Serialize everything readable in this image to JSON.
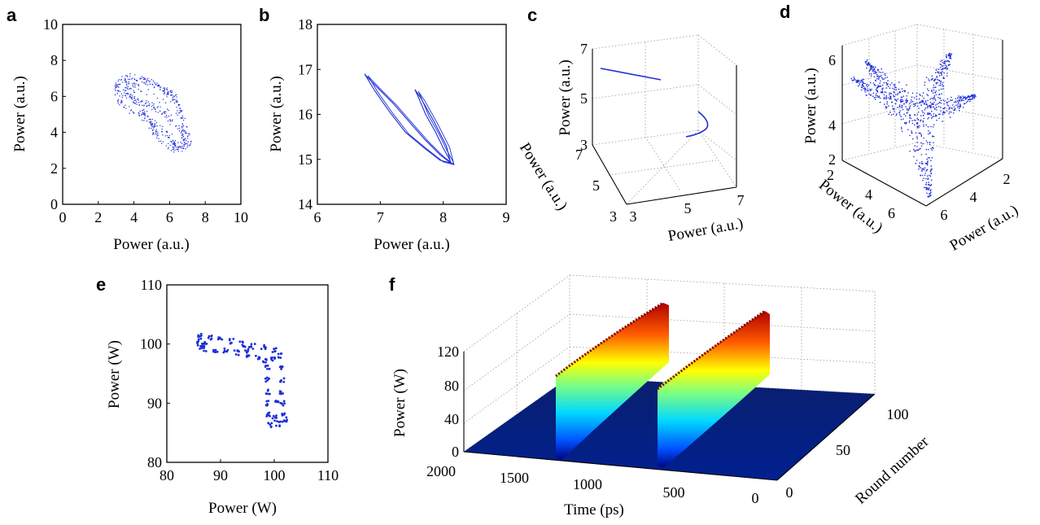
{
  "chart_data": [
    {
      "panel": "a",
      "type": "scatter",
      "xlabel": "Power (a.u.)",
      "ylabel": "Power (a.u.)",
      "xlim": [
        0,
        10
      ],
      "ylim": [
        0,
        10
      ],
      "xticks": [
        "0",
        "2",
        "4",
        "6",
        "8",
        "10"
      ],
      "yticks": [
        "0",
        "2",
        "4",
        "6",
        "8",
        "10"
      ],
      "color": "#1f2fd6",
      "points": [
        [
          3.4,
          7.0
        ],
        [
          3.0,
          6.6
        ],
        [
          3.2,
          5.8
        ],
        [
          4.0,
          5.1
        ],
        [
          5.0,
          4.6
        ],
        [
          5.8,
          4.0
        ],
        [
          6.3,
          3.4
        ],
        [
          6.9,
          3.2
        ],
        [
          6.8,
          3.9
        ],
        [
          6.2,
          4.6
        ],
        [
          5.5,
          5.2
        ],
        [
          4.8,
          5.6
        ],
        [
          4.0,
          5.8
        ],
        [
          3.4,
          6.2
        ],
        [
          3.8,
          7.1
        ],
        [
          4.8,
          6.8
        ],
        [
          5.8,
          6.3
        ],
        [
          6.3,
          5.8
        ],
        [
          6.8,
          4.5
        ],
        [
          7.1,
          3.4
        ],
        [
          6.4,
          3.0
        ],
        [
          5.6,
          3.5
        ],
        [
          5.1,
          4.2
        ],
        [
          4.8,
          4.8
        ],
        [
          4.3,
          5.5
        ],
        [
          3.7,
          6.5
        ],
        [
          4.6,
          6.9
        ],
        [
          5.5,
          6.5
        ],
        [
          6.2,
          6.1
        ],
        [
          6.6,
          5.0
        ]
      ]
    },
    {
      "panel": "b",
      "type": "line",
      "xlabel": "Power (a.u.)",
      "ylabel": "Power (a.u.)",
      "xlim": [
        6,
        9
      ],
      "ylim": [
        14,
        18
      ],
      "xticks": [
        "6",
        "7",
        "8",
        "9"
      ],
      "yticks": [
        "14",
        "15",
        "16",
        "17",
        "18"
      ],
      "color": "#1f2fd6",
      "x": [
        6.75,
        6.9,
        7.15,
        7.4,
        7.7,
        7.95,
        8.12,
        8.05,
        7.85,
        7.65,
        7.55,
        7.6,
        7.72,
        7.88,
        8.0,
        8.1,
        8.12,
        7.95,
        7.7,
        7.45,
        7.2,
        6.95,
        6.78,
        6.75
      ],
      "y": [
        16.9,
        16.55,
        16.05,
        15.6,
        15.25,
        14.98,
        14.92,
        15.3,
        15.85,
        16.35,
        16.55,
        16.4,
        16.0,
        15.6,
        15.25,
        15.0,
        14.92,
        15.1,
        15.45,
        15.85,
        16.25,
        16.6,
        16.85,
        16.9
      ]
    },
    {
      "panel": "c",
      "type": "line3d",
      "xlabel": "Power (a.u.)",
      "ylabel": "Power (a.u.)",
      "zlabel": "Power (a.u.)",
      "xlim": [
        3,
        7
      ],
      "ylim": [
        3,
        7
      ],
      "zlim": [
        3,
        7
      ],
      "xticks": [
        "3",
        "5",
        "7"
      ],
      "yticks": [
        "3",
        "5",
        "7"
      ],
      "zticks": [
        "3",
        "5",
        "7"
      ],
      "color": "#1f2fd6"
    },
    {
      "panel": "d",
      "type": "scatter3d",
      "xlabel": "Power (a.u.)",
      "ylabel": "Power (a.u.)",
      "zlabel": "Power (a.u.)",
      "xticks": [
        "2",
        "4",
        "6"
      ],
      "yticks": [
        "2",
        "4",
        "6"
      ],
      "zticks": [
        "2",
        "4",
        "6"
      ],
      "color": "#1f2fd6"
    },
    {
      "panel": "e",
      "type": "scatter",
      "xlabel": "Power (W)",
      "ylabel": "Power (W)",
      "xlim": [
        80,
        110
      ],
      "ylim": [
        80,
        110
      ],
      "xticks": [
        "80",
        "90",
        "100",
        "110"
      ],
      "yticks": [
        "80",
        "90",
        "100",
        "110"
      ],
      "color": "#1f2fd6",
      "points": [
        [
          86.0,
          101.5
        ],
        [
          88,
          101.2
        ],
        [
          90,
          100.9
        ],
        [
          92,
          100.5
        ],
        [
          94,
          100.0
        ],
        [
          96,
          99.6
        ],
        [
          98,
          99.4
        ],
        [
          100,
          99.0
        ],
        [
          101,
          98.0
        ],
        [
          101.3,
          96
        ],
        [
          101.4,
          94
        ],
        [
          101.5,
          92
        ],
        [
          101.6,
          90
        ],
        [
          101.8,
          88
        ],
        [
          102.0,
          86.8
        ],
        [
          100.8,
          86.5
        ],
        [
          99.3,
          86.4
        ],
        [
          99.0,
          88
        ],
        [
          98.9,
          90
        ],
        [
          98.8,
          92
        ],
        [
          98.8,
          94
        ],
        [
          98.7,
          96
        ],
        [
          98.3,
          97.3
        ],
        [
          97,
          97.8
        ],
        [
          95,
          98.2
        ],
        [
          93,
          98.5
        ],
        [
          91,
          98.8
        ],
        [
          89,
          99.0
        ],
        [
          87,
          99.2
        ],
        [
          86.2,
          99.5
        ],
        [
          86.0,
          100.5
        ],
        [
          87,
          100.0
        ],
        [
          95,
          99.2
        ],
        [
          99.8,
          97.5
        ],
        [
          100.5,
          90
        ],
        [
          100.0,
          87.5
        ]
      ]
    },
    {
      "panel": "f",
      "type": "surface3d",
      "xlabel": "Time (ps)",
      "ylabel": "Round number",
      "zlabel": "Power (W)",
      "xticks": [
        "0",
        "500",
        "1000",
        "1500",
        "2000"
      ],
      "yticks": [
        "0",
        "50",
        "100"
      ],
      "zticks": [
        "0",
        "40",
        "80",
        "120"
      ],
      "colormap": "jet"
    }
  ],
  "panel_labels": {
    "a": "a",
    "b": "b",
    "c": "c",
    "d": "d",
    "e": "e",
    "f": "f"
  }
}
